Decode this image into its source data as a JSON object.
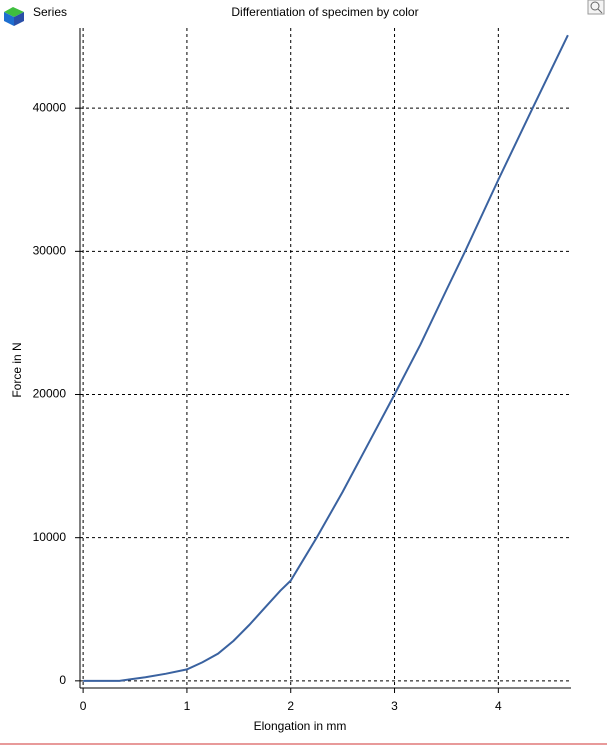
{
  "chart_data": {
    "type": "line",
    "title": "Differentiation of specimen by color",
    "x_label": "Elongation in mm",
    "y_label": "Force in N",
    "x": [
      0,
      0.35,
      0.6,
      0.8,
      1.0,
      1.15,
      1.3,
      1.45,
      1.6,
      1.75,
      1.9,
      2.0,
      2.1,
      2.25,
      2.5,
      2.75,
      3.0,
      3.25,
      3.5,
      3.68,
      4.0,
      4.33,
      4.67
    ],
    "series": [
      {
        "name": "Series",
        "color": "#3a62a0",
        "values": [
          0,
          0,
          250,
          500,
          800,
          1300,
          1900,
          2800,
          3900,
          5100,
          6300,
          7000,
          8200,
          10000,
          13200,
          16600,
          20000,
          23500,
          27300,
          30000,
          35000,
          40000,
          45100
        ]
      }
    ],
    "xlim": [
      -0.03,
      4.7
    ],
    "ylim": [
      -500,
      45600
    ],
    "xticks": [
      0,
      1,
      2,
      3,
      4
    ],
    "yticks": [
      0,
      10000,
      20000,
      30000,
      40000
    ],
    "grid": true
  }
}
